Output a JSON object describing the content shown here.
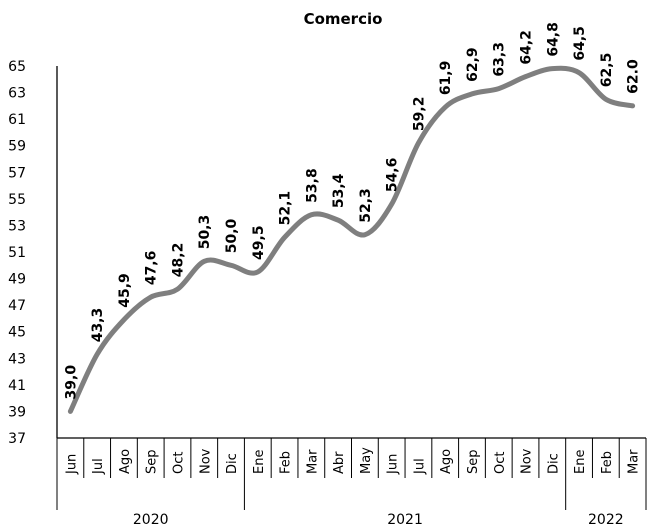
{
  "chart_data": {
    "type": "line",
    "title": "Comercio",
    "xlabel": "",
    "ylabel": "",
    "ylim": [
      37,
      65
    ],
    "yticks": [
      37,
      39,
      41,
      43,
      45,
      47,
      49,
      51,
      53,
      55,
      57,
      59,
      61,
      63,
      65
    ],
    "categories": [
      "Jun",
      "Jul",
      "Ago",
      "Sep",
      "Oct",
      "Nov",
      "Dic",
      "Ene",
      "Feb",
      "Mar",
      "Abr",
      "May",
      "Jun",
      "Jul",
      "Ago",
      "Sep",
      "Oct",
      "Nov",
      "Dic",
      "Ene",
      "Feb",
      "Mar"
    ],
    "years": [
      {
        "label": "2020",
        "start": 0,
        "end": 6
      },
      {
        "label": "2021",
        "start": 7,
        "end": 18
      },
      {
        "label": "2022",
        "start": 19,
        "end": 21
      }
    ],
    "series": [
      {
        "color": "#7f7f7f",
        "values": [
          39.0,
          43.3,
          45.9,
          47.6,
          48.2,
          50.3,
          50.0,
          49.5,
          52.1,
          53.8,
          53.4,
          52.3,
          54.6,
          59.2,
          61.9,
          62.9,
          63.3,
          64.2,
          64.8,
          64.5,
          62.5,
          62.0
        ],
        "labels": [
          "39,0",
          "43,3",
          "45,9",
          "47,6",
          "48,2",
          "50,3",
          "50,0",
          "49,5",
          "52,1",
          "53,8",
          "53,4",
          "52,3",
          "54,6",
          "59,2",
          "61,9",
          "62,9",
          "63,3",
          "64,2",
          "64,8",
          "64,5",
          "62,5",
          "62.0"
        ]
      }
    ],
    "grid": false,
    "legend": "none"
  }
}
